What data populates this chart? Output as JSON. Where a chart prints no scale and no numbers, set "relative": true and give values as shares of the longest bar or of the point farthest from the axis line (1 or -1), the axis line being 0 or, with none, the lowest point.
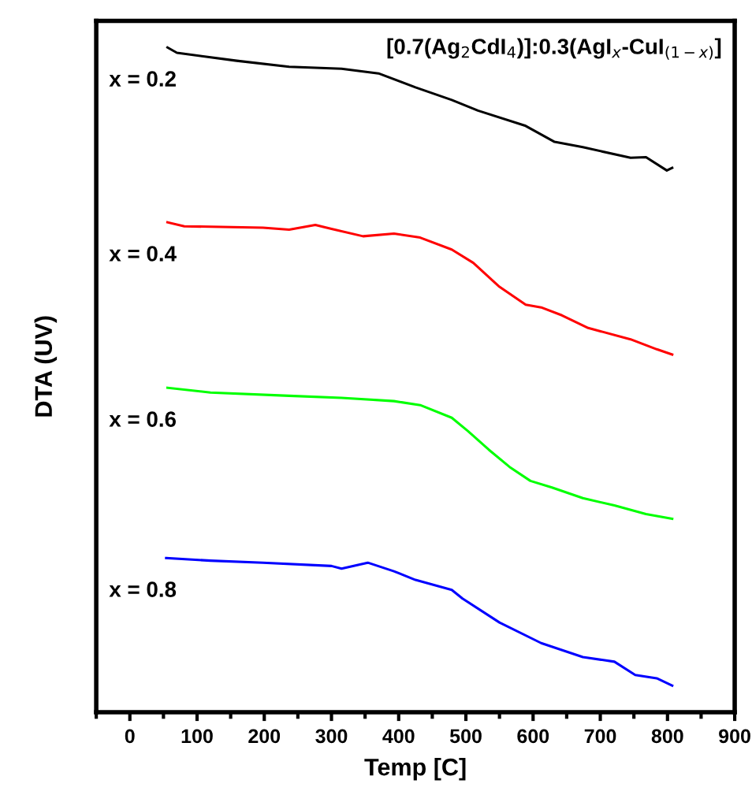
{
  "chart_data": {
    "type": "line",
    "title": "[0.7(Ag$_{2}$CdI$_{4}$)]:0.3(AgI$_{x}$-CuI$_{(1−x)}$]",
    "xlabel": "Temp [C]",
    "ylabel": "DTA (UV)",
    "relative": true,
    "xlim": [
      -50,
      900
    ],
    "xticks": [
      {
        "value": -50,
        "label": null
      },
      0,
      {
        "value": 50,
        "label": null
      },
      100,
      {
        "value": 150,
        "label": null
      },
      200,
      {
        "value": 250,
        "label": null
      },
      300,
      {
        "value": 350,
        "label": null
      },
      400,
      {
        "value": 450,
        "label": null
      },
      500,
      {
        "value": 550,
        "label": null
      },
      600,
      {
        "value": 650,
        "label": null
      },
      700,
      {
        "value": 750,
        "label": null
      },
      800,
      {
        "value": 850,
        "label": null
      },
      900
    ],
    "grid": false,
    "legend": false,
    "series": [
      {
        "name": "x = 0.2",
        "color": "#000000",
        "x": [
          56,
          70,
          159,
          237,
          315,
          370,
          425,
          479,
          518,
          589,
          632,
          674,
          745,
          768,
          799,
          807
        ],
        "values": [
          1.0,
          0.992,
          0.98,
          0.971,
          0.968,
          0.961,
          0.94,
          0.921,
          0.905,
          0.882,
          0.858,
          0.85,
          0.834,
          0.835,
          0.815,
          0.819
        ]
      },
      {
        "name": "x = 0.4",
        "color": "#ff0000",
        "x": [
          56,
          81,
          198,
          237,
          276,
          300,
          347,
          393,
          432,
          479,
          511,
          550,
          589,
          612,
          643,
          682,
          745,
          784,
          807
        ],
        "values": [
          0.737,
          0.731,
          0.729,
          0.726,
          0.733,
          0.727,
          0.716,
          0.72,
          0.714,
          0.696,
          0.676,
          0.64,
          0.613,
          0.609,
          0.597,
          0.578,
          0.561,
          0.546,
          0.538
        ]
      },
      {
        "name": "x = 0.6",
        "color": "#00ff00",
        "x": [
          56,
          120,
          237,
          315,
          393,
          432,
          479,
          503,
          534,
          565,
          596,
          628,
          674,
          721,
          768,
          807
        ],
        "values": [
          0.488,
          0.481,
          0.476,
          0.473,
          0.468,
          0.462,
          0.443,
          0.423,
          0.395,
          0.369,
          0.348,
          0.338,
          0.322,
          0.311,
          0.298,
          0.291
        ]
      },
      {
        "name": "x = 0.8",
        "color": "#0000ff",
        "x": [
          54,
          120,
          198,
          300,
          315,
          354,
          393,
          425,
          479,
          495,
          550,
          612,
          674,
          721,
          752,
          784,
          807
        ],
        "values": [
          0.232,
          0.228,
          0.225,
          0.22,
          0.216,
          0.225,
          0.212,
          0.199,
          0.184,
          0.171,
          0.135,
          0.104,
          0.083,
          0.076,
          0.056,
          0.051,
          0.04
        ]
      }
    ]
  }
}
